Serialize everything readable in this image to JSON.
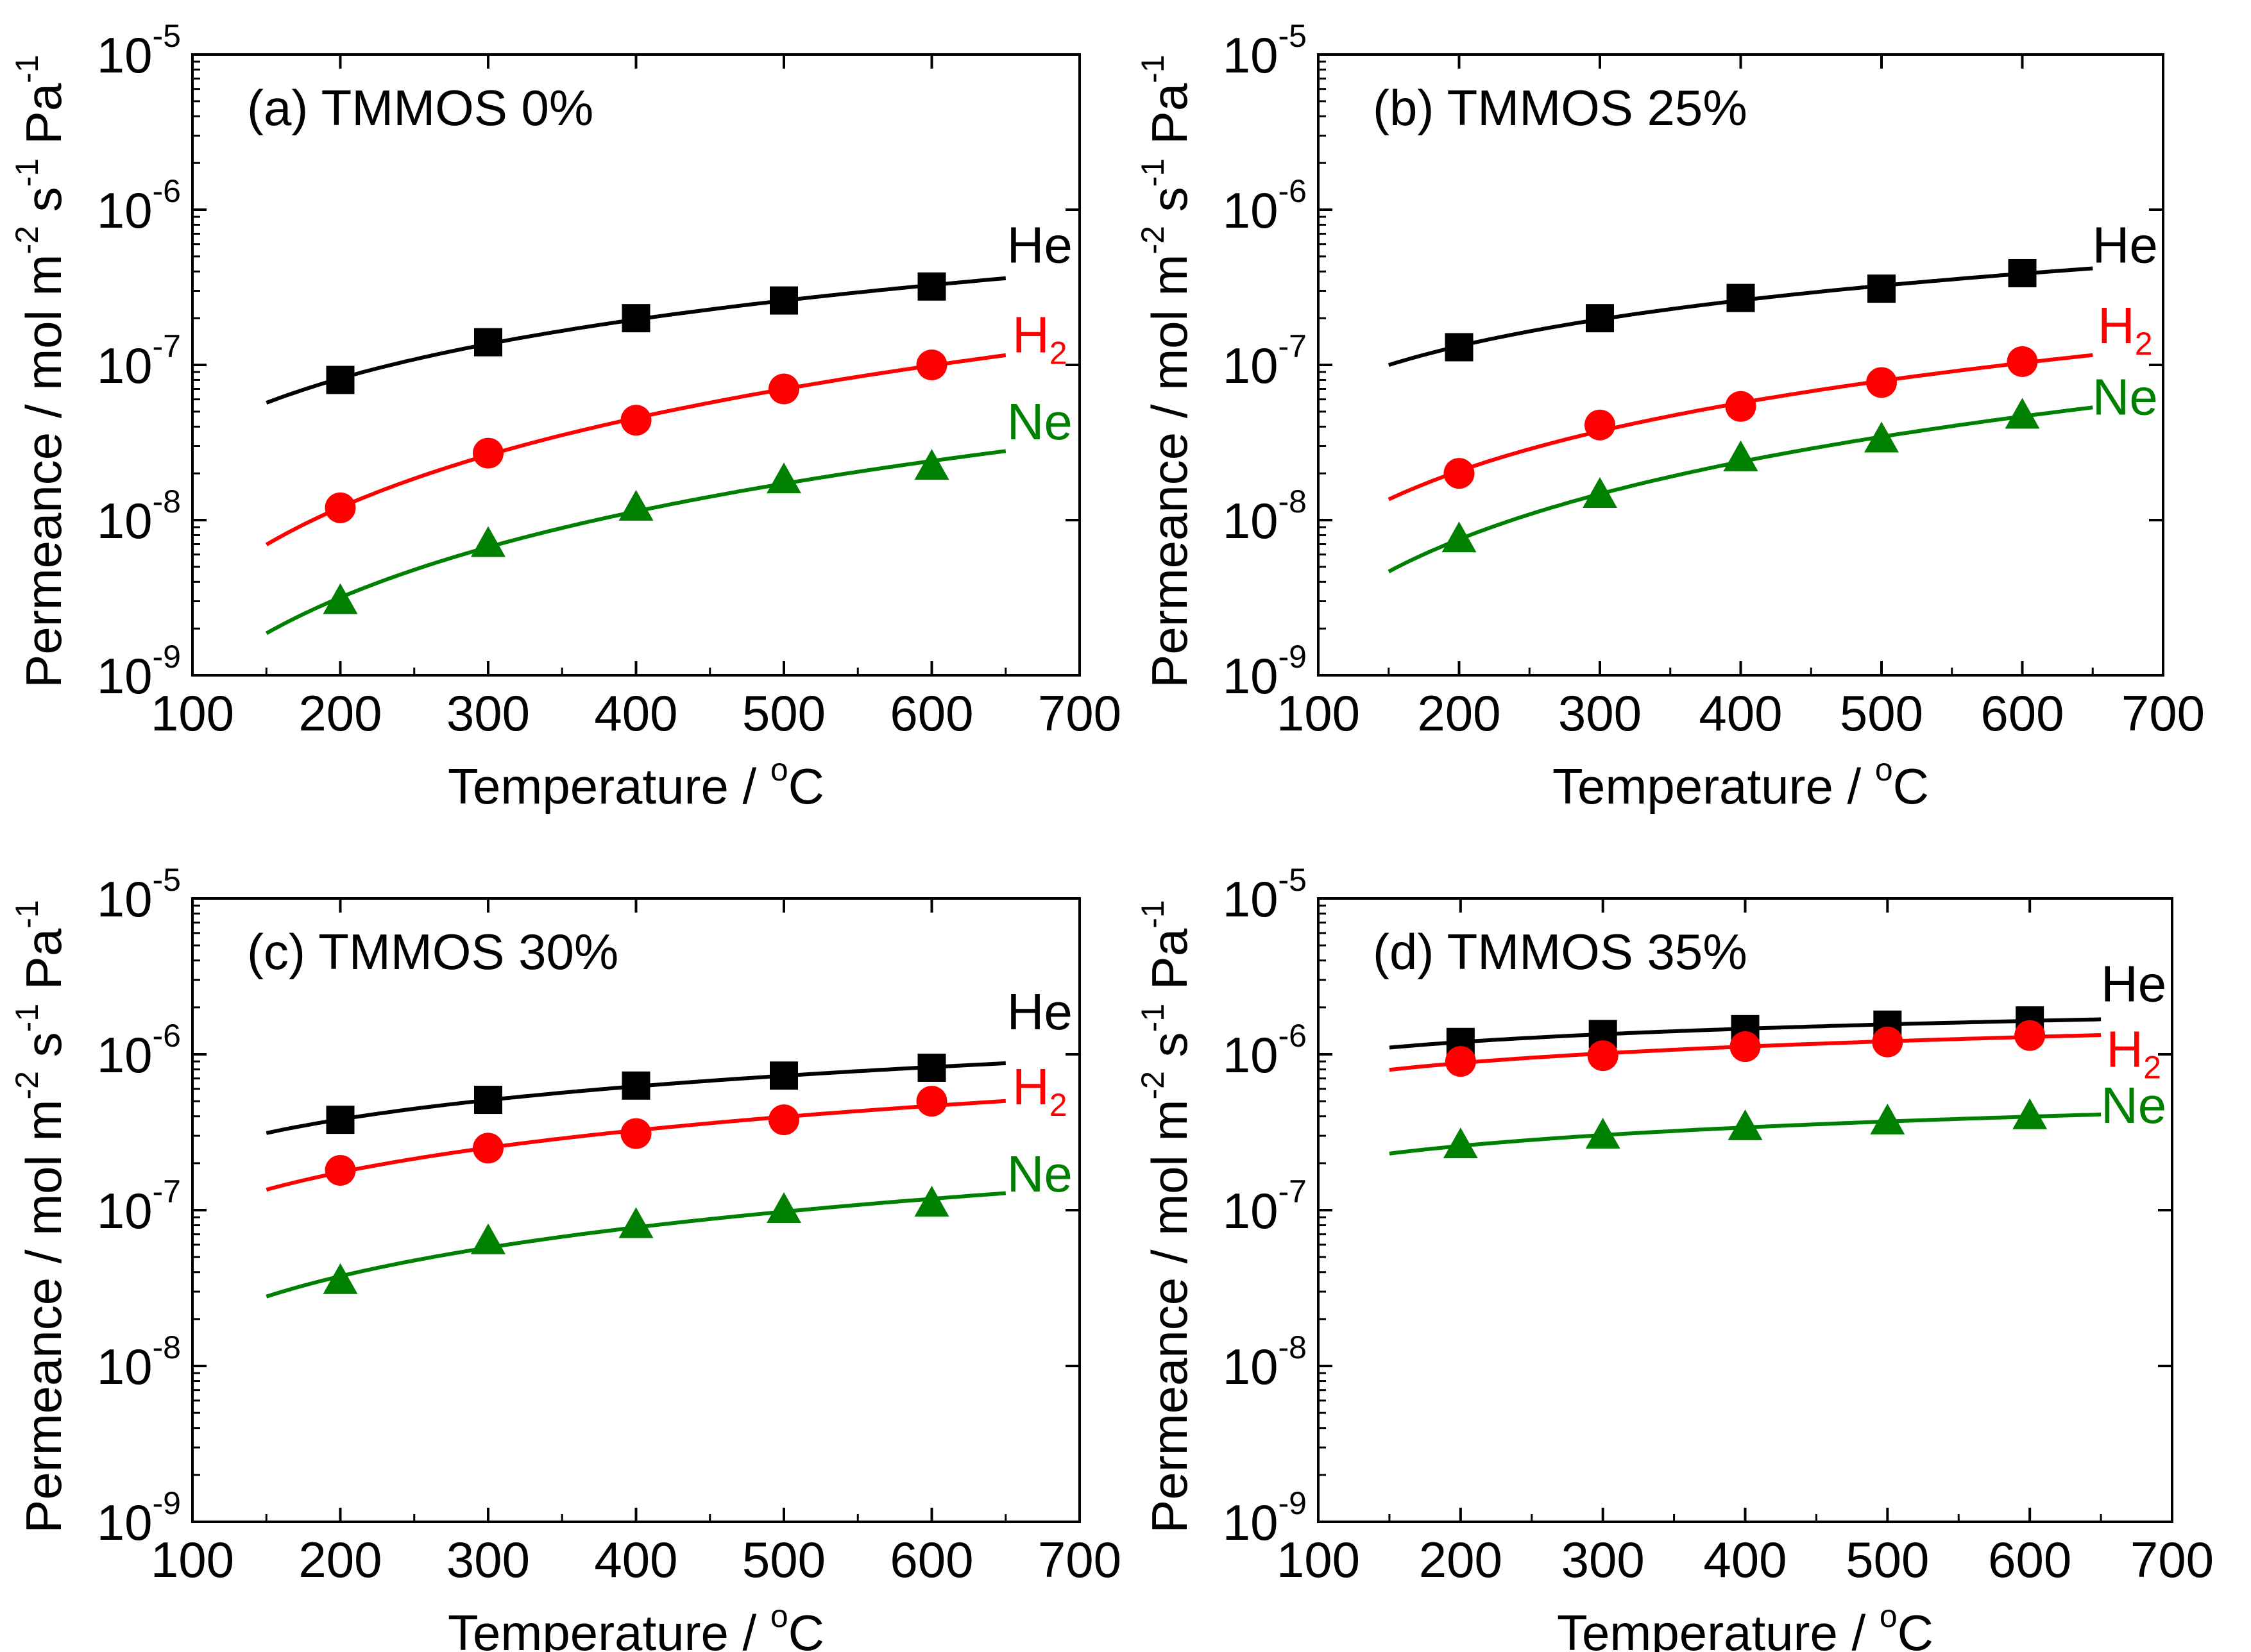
{
  "figure": {
    "y_axis_label": "Permeance / mol m",
    "y_unit_exp1": "-2",
    "y_unit_s": " s",
    "y_unit_exp2": "-1",
    "y_unit_pa": " Pa",
    "y_unit_exp3": "-1",
    "x_axis_label": "Temperature / ",
    "x_unit_sup": "o",
    "x_unit_c": "C",
    "tick_base": "10"
  },
  "chart_data": [
    {
      "type": "scatter",
      "panel_label": "(a) TMMOS 0%",
      "xlabel": "Temperature / °C",
      "ylabel": "Permeance / mol m-2 s-1 Pa-1",
      "xlim": [
        100,
        700
      ],
      "ylim": [
        1e-09,
        1e-05
      ],
      "yscale": "log",
      "xticks": [
        100,
        200,
        300,
        400,
        500,
        600,
        700
      ],
      "yticks": [
        {
          "base": "10",
          "exp": "-9",
          "value": 1e-09
        },
        {
          "base": "10",
          "exp": "-8",
          "value": 1e-08
        },
        {
          "base": "10",
          "exp": "-7",
          "value": 1e-07
        },
        {
          "base": "10",
          "exp": "-6",
          "value": 1e-06
        },
        {
          "base": "10",
          "exp": "-5",
          "value": 1e-05
        }
      ],
      "fit_x_range": [
        150,
        650
      ],
      "series": [
        {
          "name": "He",
          "label_main": "He",
          "label_sub": "",
          "color": "#000000",
          "marker": "square",
          "x": [
            200,
            300,
            400,
            500,
            600
          ],
          "y": [
            8e-08,
            1.4e-07,
            2e-07,
            2.6e-07,
            3.2e-07
          ]
        },
        {
          "name": "H2",
          "label_main": "H",
          "label_sub": "2",
          "color": "#ff0000",
          "marker": "circle",
          "x": [
            200,
            300,
            400,
            500,
            600
          ],
          "y": [
            1.2e-08,
            2.7e-08,
            4.4e-08,
            7e-08,
            1e-07
          ]
        },
        {
          "name": "Ne",
          "label_main": "Ne",
          "label_sub": "",
          "color": "#008000",
          "marker": "triangle",
          "x": [
            200,
            300,
            400,
            500,
            600
          ],
          "y": [
            3e-09,
            7e-09,
            1.2e-08,
            1.8e-08,
            2.2e-08
          ]
        }
      ]
    },
    {
      "type": "scatter",
      "panel_label": "(b) TMMOS 25%",
      "xlabel": "Temperature / °C",
      "ylabel": "Permeance / mol m-2 s-1 Pa-1",
      "xlim": [
        100,
        700
      ],
      "ylim": [
        1e-09,
        1e-05
      ],
      "yscale": "log",
      "xticks": [
        100,
        200,
        300,
        400,
        500,
        600,
        700
      ],
      "yticks": [
        {
          "base": "10",
          "exp": "-9",
          "value": 1e-09
        },
        {
          "base": "10",
          "exp": "-8",
          "value": 1e-08
        },
        {
          "base": "10",
          "exp": "-7",
          "value": 1e-07
        },
        {
          "base": "10",
          "exp": "-6",
          "value": 1e-06
        },
        {
          "base": "10",
          "exp": "-5",
          "value": 1e-05
        }
      ],
      "fit_x_range": [
        150,
        650
      ],
      "series": [
        {
          "name": "He",
          "label_main": "He",
          "label_sub": "",
          "color": "#000000",
          "marker": "square",
          "x": [
            200,
            300,
            400,
            500,
            600
          ],
          "y": [
            1.3e-07,
            2e-07,
            2.7e-07,
            3.1e-07,
            3.9e-07
          ]
        },
        {
          "name": "H2",
          "label_main": "H",
          "label_sub": "2",
          "color": "#ff0000",
          "marker": "circle",
          "x": [
            200,
            300,
            400,
            500,
            600
          ],
          "y": [
            2e-08,
            4.1e-08,
            5.4e-08,
            7.7e-08,
            1.05e-07
          ]
        },
        {
          "name": "Ne",
          "label_main": "Ne",
          "label_sub": "",
          "color": "#008000",
          "marker": "triangle",
          "x": [
            200,
            300,
            400,
            500,
            600
          ],
          "y": [
            7.5e-09,
            1.45e-08,
            2.5e-08,
            3.3e-08,
            4.7e-08
          ]
        }
      ]
    },
    {
      "type": "scatter",
      "panel_label": "(c) TMMOS 30%",
      "xlabel": "Temperature / °C",
      "ylabel": "Permeance / mol m-2 s-1 Pa-1",
      "xlim": [
        100,
        700
      ],
      "ylim": [
        1e-09,
        1e-05
      ],
      "yscale": "log",
      "xticks": [
        100,
        200,
        300,
        400,
        500,
        600,
        700
      ],
      "yticks": [
        {
          "base": "10",
          "exp": "-9",
          "value": 1e-09
        },
        {
          "base": "10",
          "exp": "-8",
          "value": 1e-08
        },
        {
          "base": "10",
          "exp": "-7",
          "value": 1e-07
        },
        {
          "base": "10",
          "exp": "-6",
          "value": 1e-06
        },
        {
          "base": "10",
          "exp": "-5",
          "value": 1e-05
        }
      ],
      "fit_x_range": [
        150,
        650
      ],
      "series": [
        {
          "name": "He",
          "label_main": "He",
          "label_sub": "",
          "color": "#000000",
          "marker": "square",
          "x": [
            200,
            300,
            400,
            500,
            600
          ],
          "y": [
            3.8e-07,
            5.1e-07,
            6.3e-07,
            7.3e-07,
            8.2e-07
          ]
        },
        {
          "name": "H2",
          "label_main": "H",
          "label_sub": "2",
          "color": "#ff0000",
          "marker": "circle",
          "x": [
            200,
            300,
            400,
            500,
            600
          ],
          "y": [
            1.8e-07,
            2.5e-07,
            3.1e-07,
            3.8e-07,
            5e-07
          ]
        },
        {
          "name": "Ne",
          "label_main": "Ne",
          "label_sub": "",
          "color": "#008000",
          "marker": "triangle",
          "x": [
            200,
            300,
            400,
            500,
            600
          ],
          "y": [
            3.5e-08,
            6.3e-08,
            8e-08,
            1e-07,
            1.1e-07
          ]
        }
      ]
    },
    {
      "type": "scatter",
      "panel_label": "(d) TMMOS 35%",
      "xlabel": "Temperature / °C",
      "ylabel": "Permeance / mol m-2 s-1 Pa-1",
      "xlim": [
        100,
        700
      ],
      "ylim": [
        1e-09,
        1e-05
      ],
      "yscale": "log",
      "xticks": [
        100,
        200,
        300,
        400,
        500,
        600,
        700
      ],
      "yticks": [
        {
          "base": "10",
          "exp": "-9",
          "value": 1e-09
        },
        {
          "base": "10",
          "exp": "-8",
          "value": 1e-08
        },
        {
          "base": "10",
          "exp": "-7",
          "value": 1e-07
        },
        {
          "base": "10",
          "exp": "-6",
          "value": 1e-06
        },
        {
          "base": "10",
          "exp": "-5",
          "value": 1e-05
        }
      ],
      "fit_x_range": [
        150,
        650
      ],
      "series": [
        {
          "name": "He",
          "label_main": "He",
          "label_sub": "",
          "color": "#000000",
          "marker": "square",
          "x": [
            200,
            300,
            400,
            500,
            600
          ],
          "y": [
            1.2e-06,
            1.35e-06,
            1.45e-06,
            1.55e-06,
            1.65e-06
          ]
        },
        {
          "name": "H2",
          "label_main": "H",
          "label_sub": "2",
          "color": "#ff0000",
          "marker": "circle",
          "x": [
            200,
            300,
            400,
            500,
            600
          ],
          "y": [
            9e-07,
            9.8e-07,
            1.12e-06,
            1.2e-06,
            1.32e-06
          ]
        },
        {
          "name": "Ne",
          "label_main": "Ne",
          "label_sub": "",
          "color": "#008000",
          "marker": "triangle",
          "x": [
            200,
            300,
            400,
            500,
            600
          ],
          "y": [
            2.6e-07,
            3e-07,
            3.4e-07,
            3.7e-07,
            4e-07
          ]
        }
      ]
    }
  ]
}
